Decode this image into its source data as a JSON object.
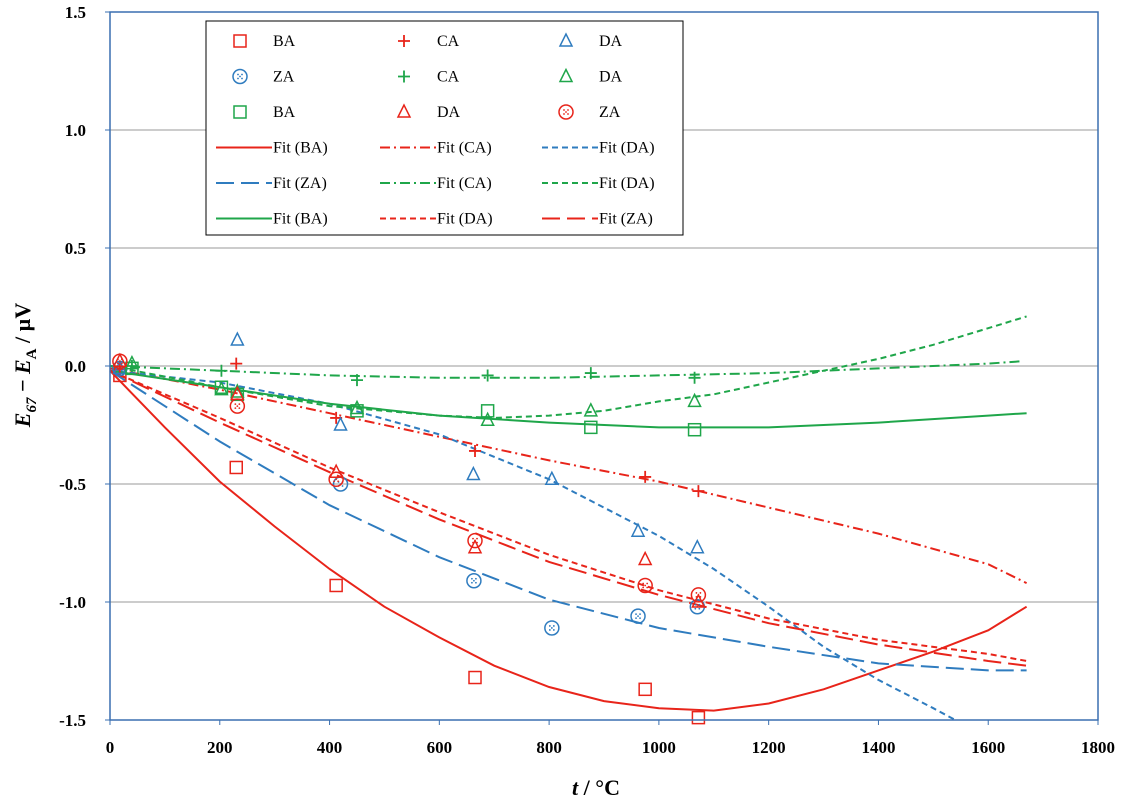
{
  "chart_data": {
    "type": "scatter",
    "xlabel": {
      "italic": "t",
      "rest": " / °C"
    },
    "ylabel": {
      "E": "E",
      "Esub": "67",
      "minus": " − ",
      "E2": "E",
      "E2sub": "A",
      "unit": " / µV"
    },
    "xlim": [
      0,
      1800
    ],
    "ylim": [
      -1.5,
      1.5
    ],
    "x_ticks": [
      "0",
      "200",
      "400",
      "600",
      "800",
      "1000",
      "1200",
      "1400",
      "1600",
      "1800"
    ],
    "y_ticks": [
      "1.5",
      "1.0",
      "0.5",
      "0.0",
      "-0.5",
      "-1.0",
      "-1.5"
    ],
    "y_tick_values": [
      1.5,
      1.0,
      0.5,
      0.0,
      -0.5,
      -1.0,
      -1.5
    ],
    "grid": "horizontal",
    "legend_position": "top-left",
    "colors": {
      "red": "#e8241a",
      "blue": "#2f7cbf",
      "green": "#1fa64a"
    },
    "series": [
      {
        "name": "BA",
        "kind": "points",
        "marker": "square",
        "color": "red",
        "points": [
          [
            18,
            -0.04
          ],
          [
            230,
            -0.43
          ],
          [
            412,
            -0.93
          ],
          [
            665,
            -1.32
          ],
          [
            975,
            -1.37
          ],
          [
            1072,
            -1.49
          ]
        ]
      },
      {
        "name": "CA",
        "kind": "points",
        "marker": "plus",
        "color": "red",
        "points": [
          [
            18,
            -0.01
          ],
          [
            230,
            0.01
          ],
          [
            412,
            -0.22
          ],
          [
            665,
            -0.36
          ],
          [
            975,
            -0.47
          ],
          [
            1072,
            -0.53
          ]
        ]
      },
      {
        "name": "DA",
        "kind": "points",
        "marker": "triangle",
        "color": "blue",
        "points": [
          [
            18,
            -0.01
          ],
          [
            232,
            0.11
          ],
          [
            420,
            -0.25
          ],
          [
            662,
            -0.46
          ],
          [
            805,
            -0.48
          ],
          [
            962,
            -0.7
          ],
          [
            1070,
            -0.77
          ]
        ]
      },
      {
        "name": "ZA",
        "kind": "points",
        "marker": "circle",
        "color": "blue",
        "points": [
          [
            18,
            -0.01
          ],
          [
            420,
            -0.5
          ],
          [
            663,
            -0.91
          ],
          [
            805,
            -1.11
          ],
          [
            962,
            -1.06
          ],
          [
            1070,
            -1.02
          ]
        ]
      },
      {
        "name": "CA",
        "kind": "points",
        "marker": "plus",
        "color": "green",
        "points": [
          [
            40,
            0.0
          ],
          [
            203,
            -0.02
          ],
          [
            450,
            -0.06
          ],
          [
            688,
            -0.04
          ],
          [
            876,
            -0.03
          ],
          [
            1065,
            -0.05
          ]
        ]
      },
      {
        "name": "DA",
        "kind": "points",
        "marker": "triangle",
        "color": "green",
        "points": [
          [
            40,
            0.01
          ],
          [
            203,
            -0.1
          ],
          [
            232,
            -0.11
          ],
          [
            450,
            -0.18
          ],
          [
            688,
            -0.23
          ],
          [
            876,
            -0.19
          ],
          [
            1065,
            -0.15
          ]
        ]
      },
      {
        "name": "BA",
        "kind": "points",
        "marker": "square",
        "color": "green",
        "points": [
          [
            40,
            -0.01
          ],
          [
            203,
            -0.09
          ],
          [
            232,
            -0.12
          ],
          [
            450,
            -0.19
          ],
          [
            688,
            -0.19
          ],
          [
            876,
            -0.26
          ],
          [
            1065,
            -0.27
          ]
        ]
      },
      {
        "name": "DA",
        "kind": "points",
        "marker": "triangle",
        "color": "red",
        "points": [
          [
            18,
            0.02
          ],
          [
            232,
            -0.12
          ],
          [
            412,
            -0.45
          ],
          [
            665,
            -0.77
          ],
          [
            975,
            -0.82
          ],
          [
            1072,
            -1.0
          ]
        ]
      },
      {
        "name": "ZA",
        "kind": "points",
        "marker": "dotcircle",
        "color": "red",
        "points": [
          [
            18,
            0.02
          ],
          [
            232,
            -0.17
          ],
          [
            412,
            -0.48
          ],
          [
            665,
            -0.74
          ],
          [
            975,
            -0.93
          ],
          [
            1072,
            -0.97
          ]
        ]
      },
      {
        "name": "Fit (BA)",
        "kind": "line",
        "dash": "solid",
        "color": "red",
        "points": [
          [
            0,
            -0.02
          ],
          [
            100,
            -0.26
          ],
          [
            200,
            -0.49
          ],
          [
            300,
            -0.68
          ],
          [
            400,
            -0.86
          ],
          [
            500,
            -1.02
          ],
          [
            600,
            -1.15
          ],
          [
            700,
            -1.27
          ],
          [
            800,
            -1.36
          ],
          [
            900,
            -1.42
          ],
          [
            1000,
            -1.45
          ],
          [
            1100,
            -1.46
          ],
          [
            1200,
            -1.43
          ],
          [
            1300,
            -1.37
          ],
          [
            1400,
            -1.29
          ],
          [
            1500,
            -1.21
          ],
          [
            1600,
            -1.12
          ],
          [
            1670,
            -1.02
          ]
        ]
      },
      {
        "name": "Fit (CA)",
        "kind": "line",
        "dash": "dashdot",
        "color": "red",
        "points": [
          [
            0,
            -0.01
          ],
          [
            200,
            -0.1
          ],
          [
            400,
            -0.2
          ],
          [
            600,
            -0.3
          ],
          [
            800,
            -0.4
          ],
          [
            1000,
            -0.49
          ],
          [
            1200,
            -0.6
          ],
          [
            1400,
            -0.71
          ],
          [
            1600,
            -0.84
          ],
          [
            1670,
            -0.92
          ]
        ]
      },
      {
        "name": "Fit (DA)",
        "kind": "line",
        "dash": "short",
        "color": "blue",
        "points": [
          [
            0,
            -0.02
          ],
          [
            200,
            -0.07
          ],
          [
            400,
            -0.16
          ],
          [
            600,
            -0.29
          ],
          [
            800,
            -0.48
          ],
          [
            1000,
            -0.72
          ],
          [
            1100,
            -0.86
          ],
          [
            1200,
            -1.02
          ],
          [
            1300,
            -1.19
          ],
          [
            1400,
            -1.33
          ],
          [
            1500,
            -1.45
          ],
          [
            1540,
            -1.5
          ]
        ]
      },
      {
        "name": "Fit (ZA)",
        "kind": "line",
        "dash": "long",
        "color": "blue",
        "points": [
          [
            0,
            -0.02
          ],
          [
            200,
            -0.32
          ],
          [
            400,
            -0.59
          ],
          [
            600,
            -0.81
          ],
          [
            800,
            -0.99
          ],
          [
            1000,
            -1.11
          ],
          [
            1200,
            -1.19
          ],
          [
            1400,
            -1.26
          ],
          [
            1600,
            -1.29
          ],
          [
            1670,
            -1.29
          ]
        ]
      },
      {
        "name": "Fit (CA)",
        "kind": "line",
        "dash": "dashdot",
        "color": "green",
        "points": [
          [
            0,
            0.0
          ],
          [
            200,
            -0.02
          ],
          [
            400,
            -0.04
          ],
          [
            600,
            -0.05
          ],
          [
            800,
            -0.05
          ],
          [
            1000,
            -0.04
          ],
          [
            1200,
            -0.03
          ],
          [
            1400,
            -0.01
          ],
          [
            1600,
            0.01
          ],
          [
            1660,
            0.02
          ]
        ]
      },
      {
        "name": "Fit (DA)",
        "kind": "line",
        "dash": "short",
        "color": "green",
        "points": [
          [
            0,
            0.0
          ],
          [
            200,
            -0.09
          ],
          [
            400,
            -0.17
          ],
          [
            600,
            -0.21
          ],
          [
            700,
            -0.22
          ],
          [
            800,
            -0.21
          ],
          [
            900,
            -0.19
          ],
          [
            1000,
            -0.15
          ],
          [
            1100,
            -0.12
          ],
          [
            1200,
            -0.07
          ],
          [
            1300,
            -0.02
          ],
          [
            1400,
            0.03
          ],
          [
            1500,
            0.09
          ],
          [
            1600,
            0.16
          ],
          [
            1670,
            0.21
          ]
        ]
      },
      {
        "name": "Fit (BA)",
        "kind": "line",
        "dash": "solid",
        "color": "green",
        "points": [
          [
            0,
            -0.02
          ],
          [
            200,
            -0.09
          ],
          [
            400,
            -0.16
          ],
          [
            600,
            -0.21
          ],
          [
            800,
            -0.24
          ],
          [
            1000,
            -0.26
          ],
          [
            1200,
            -0.26
          ],
          [
            1400,
            -0.24
          ],
          [
            1600,
            -0.21
          ],
          [
            1670,
            -0.2
          ]
        ]
      },
      {
        "name": "Fit (DA)",
        "kind": "line",
        "dash": "short",
        "color": "red",
        "points": [
          [
            0,
            -0.02
          ],
          [
            200,
            -0.22
          ],
          [
            400,
            -0.43
          ],
          [
            600,
            -0.62
          ],
          [
            800,
            -0.8
          ],
          [
            1000,
            -0.95
          ],
          [
            1200,
            -1.07
          ],
          [
            1400,
            -1.16
          ],
          [
            1600,
            -1.22
          ],
          [
            1670,
            -1.25
          ]
        ]
      },
      {
        "name": "Fit (ZA)",
        "kind": "line",
        "dash": "long",
        "color": "red",
        "points": [
          [
            0,
            -0.02
          ],
          [
            200,
            -0.24
          ],
          [
            400,
            -0.45
          ],
          [
            600,
            -0.65
          ],
          [
            800,
            -0.83
          ],
          [
            1000,
            -0.97
          ],
          [
            1200,
            -1.09
          ],
          [
            1400,
            -1.18
          ],
          [
            1600,
            -1.25
          ],
          [
            1670,
            -1.27
          ]
        ]
      }
    ]
  }
}
